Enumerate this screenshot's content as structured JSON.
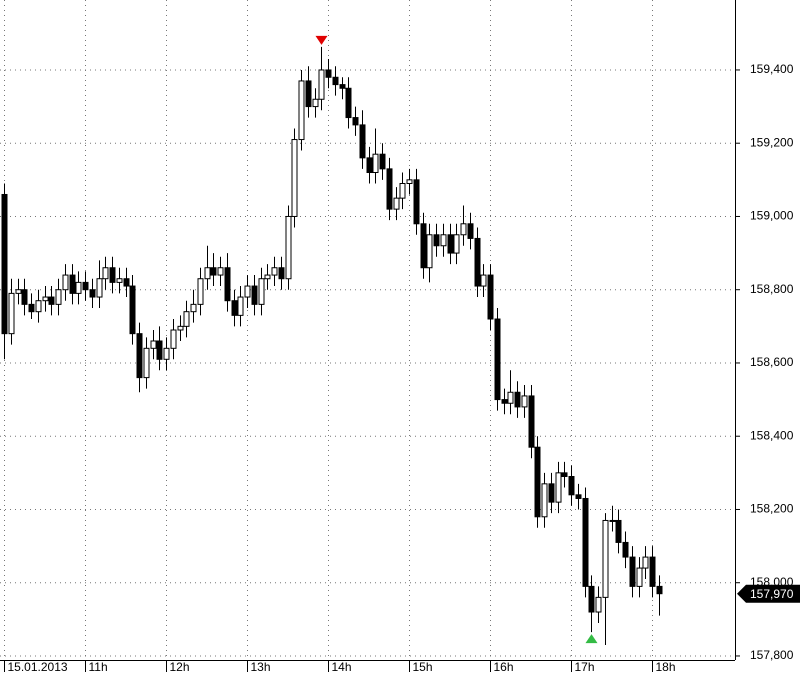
{
  "chart_data": {
    "type": "candlestick",
    "open": [
      159060,
      158680,
      158790,
      158800,
      158760,
      158740,
      158770,
      158780,
      158760,
      158800,
      158840,
      158790,
      158820,
      158800,
      158780,
      158830,
      158860,
      158820,
      158830,
      158810,
      158680,
      158560,
      158640,
      158660,
      158610,
      158640,
      158690,
      158700,
      158740,
      158760,
      158830,
      158860,
      158840,
      158860,
      158770,
      158730,
      158780,
      158810,
      158760,
      158830,
      158840,
      158860,
      158830,
      159000,
      159210,
      159370,
      159300,
      159320,
      159400,
      159380,
      159360,
      159350,
      159270,
      159250,
      159160,
      159120,
      159170,
      159130,
      159020,
      159050,
      159090,
      159100,
      158980,
      158860,
      158950,
      158920,
      158950,
      158900,
      158950,
      158980,
      158940,
      158810,
      158840,
      158720,
      158500,
      158490,
      158520,
      158480,
      158510,
      158370,
      158180,
      158270,
      158220,
      158300,
      158290,
      158240,
      158230,
      157990,
      157920,
      157960,
      158170,
      158170,
      158110,
      158070,
      157990,
      158040,
      158070,
      157990
    ],
    "high": [
      159090,
      158830,
      158830,
      158830,
      158790,
      158800,
      158810,
      158810,
      158830,
      158870,
      158870,
      158850,
      158850,
      158830,
      158880,
      158890,
      158890,
      158860,
      158860,
      158840,
      158710,
      158670,
      158690,
      158700,
      158670,
      158720,
      158730,
      158770,
      158800,
      158860,
      158920,
      158900,
      158890,
      158900,
      158800,
      158810,
      158840,
      158840,
      158860,
      158870,
      158890,
      158890,
      159030,
      159240,
      159400,
      159410,
      159350,
      159463,
      159430,
      159410,
      159380,
      159380,
      159300,
      159290,
      159190,
      159240,
      159200,
      159160,
      159080,
      159120,
      159130,
      159130,
      159010,
      158980,
      158980,
      158980,
      158980,
      158980,
      159030,
      159010,
      158970,
      158870,
      158870,
      158750,
      158530,
      158580,
      158550,
      158540,
      158540,
      158400,
      158300,
      158300,
      158330,
      158330,
      158320,
      158270,
      158260,
      158020,
      157990,
      158190,
      158210,
      158200,
      158140,
      158100,
      158070,
      158100,
      158100,
      158020
    ],
    "low": [
      158610,
      158650,
      158760,
      158730,
      158720,
      158710,
      158740,
      158730,
      158730,
      158770,
      158760,
      158760,
      158770,
      158750,
      158750,
      158800,
      158790,
      158790,
      158780,
      158650,
      158520,
      158530,
      158610,
      158580,
      158580,
      158610,
      158660,
      158670,
      158710,
      158730,
      158800,
      158810,
      158810,
      158740,
      158700,
      158700,
      158750,
      158730,
      158730,
      158800,
      158810,
      158800,
      158800,
      158970,
      159180,
      159270,
      159270,
      159290,
      159350,
      159330,
      159320,
      159240,
      159220,
      159130,
      159090,
      159090,
      159100,
      158990,
      158990,
      159020,
      159060,
      158950,
      158830,
      158820,
      158890,
      158890,
      158870,
      158870,
      158920,
      158910,
      158780,
      158780,
      158690,
      158470,
      158460,
      158460,
      158450,
      158450,
      158340,
      158150,
      158150,
      158190,
      158190,
      158260,
      158210,
      158200,
      157960,
      157865,
      157890,
      157830,
      158140,
      158080,
      158040,
      157960,
      157960,
      158010,
      157960,
      157910
    ],
    "close": [
      158680,
      158790,
      158800,
      158760,
      158740,
      158770,
      158780,
      158760,
      158800,
      158840,
      158790,
      158820,
      158800,
      158780,
      158830,
      158860,
      158820,
      158830,
      158810,
      158680,
      158560,
      158640,
      158660,
      158610,
      158640,
      158690,
      158700,
      158740,
      158760,
      158830,
      158860,
      158840,
      158860,
      158770,
      158730,
      158780,
      158810,
      158760,
      158830,
      158840,
      158860,
      158830,
      159000,
      159210,
      159370,
      159300,
      159320,
      159400,
      159380,
      159360,
      159350,
      159270,
      159250,
      159160,
      159120,
      159170,
      159130,
      159020,
      159050,
      159090,
      159100,
      158980,
      158860,
      158950,
      158920,
      158950,
      158900,
      158950,
      158980,
      158940,
      158810,
      158840,
      158720,
      158500,
      158490,
      158520,
      158480,
      158510,
      158370,
      158180,
      158270,
      158220,
      158300,
      158290,
      158240,
      158230,
      157990,
      157920,
      157960,
      158170,
      158170,
      158110,
      158070,
      157990,
      158040,
      158070,
      157990,
      157970
    ],
    "up_color": "#ffffff",
    "down_color": "#000000",
    "markers": [
      {
        "index": 47,
        "at": "high",
        "color": "#e00000"
      },
      {
        "index": 87,
        "at": "low",
        "color": "#33bb44"
      }
    ],
    "last_price_label": "157,970",
    "ylim": [
      157789,
      159591
    ],
    "yticks": [
      {
        "value": 157800,
        "label": "157,800"
      },
      {
        "value": 158000,
        "label": "158,000"
      },
      {
        "value": 158200,
        "label": "158,200"
      },
      {
        "value": 158400,
        "label": "158,400"
      },
      {
        "value": 158600,
        "label": "158,600"
      },
      {
        "value": 158800,
        "label": "158,800"
      },
      {
        "value": 159000,
        "label": "159,000"
      },
      {
        "value": 159200,
        "label": "159,200"
      },
      {
        "value": 159400,
        "label": "159,400"
      }
    ],
    "xticks": [
      {
        "value": 0,
        "label": "15.01.2013"
      },
      {
        "value": 12,
        "label": "11h"
      },
      {
        "value": 24,
        "label": "12h"
      },
      {
        "value": 36,
        "label": "13h"
      },
      {
        "value": 48,
        "label": "14h"
      },
      {
        "value": 60,
        "label": "15h"
      },
      {
        "value": 72,
        "label": "16h"
      },
      {
        "value": 84,
        "label": "17h"
      },
      {
        "value": 96,
        "label": "18h"
      }
    ],
    "grid": true
  }
}
